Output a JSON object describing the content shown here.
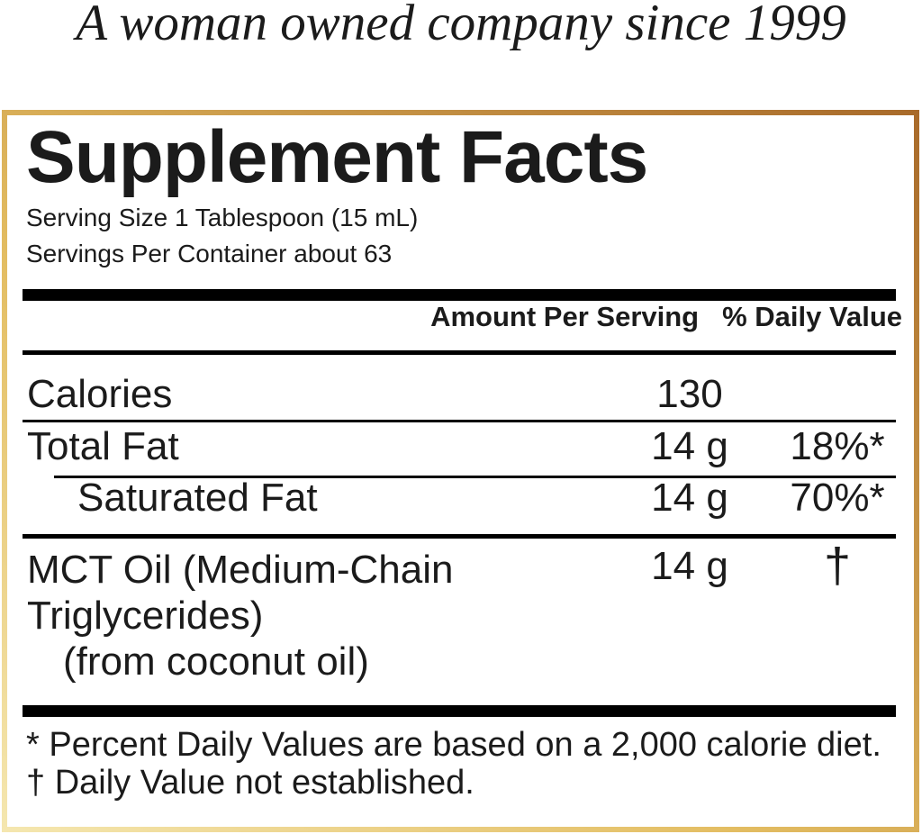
{
  "tagline": "A woman owned company since 1999",
  "panel": {
    "title": "Supplement Facts",
    "serving_size": "Serving Size 1 Tablespoon (15 mL)",
    "servings_per_container": "Servings Per Container about 63",
    "columns": {
      "amount": "Amount Per Serving",
      "daily_value": "% Daily Value"
    },
    "rows": {
      "calories": {
        "label": "Calories",
        "amount": "130",
        "daily_value": ""
      },
      "total_fat": {
        "label": "Total Fat",
        "amount": "14 g",
        "daily_value": "18%*"
      },
      "saturated_fat": {
        "label": "Saturated Fat",
        "amount": "14 g",
        "daily_value": "70%*"
      },
      "mct_oil": {
        "label_lines": [
          "MCT Oil (Medium-Chain",
          "Triglycerides)",
          "(from coconut oil)"
        ],
        "amount": "14 g",
        "daily_value": "†"
      }
    },
    "footnotes": [
      "* Percent Daily Values are based on a 2,000 calorie diet.",
      "† Daily Value not established."
    ]
  },
  "colors": {
    "border_gold_light": "#f5e7b0",
    "border_gold": "#e3bd62",
    "border_bronze": "#a86a2a"
  }
}
